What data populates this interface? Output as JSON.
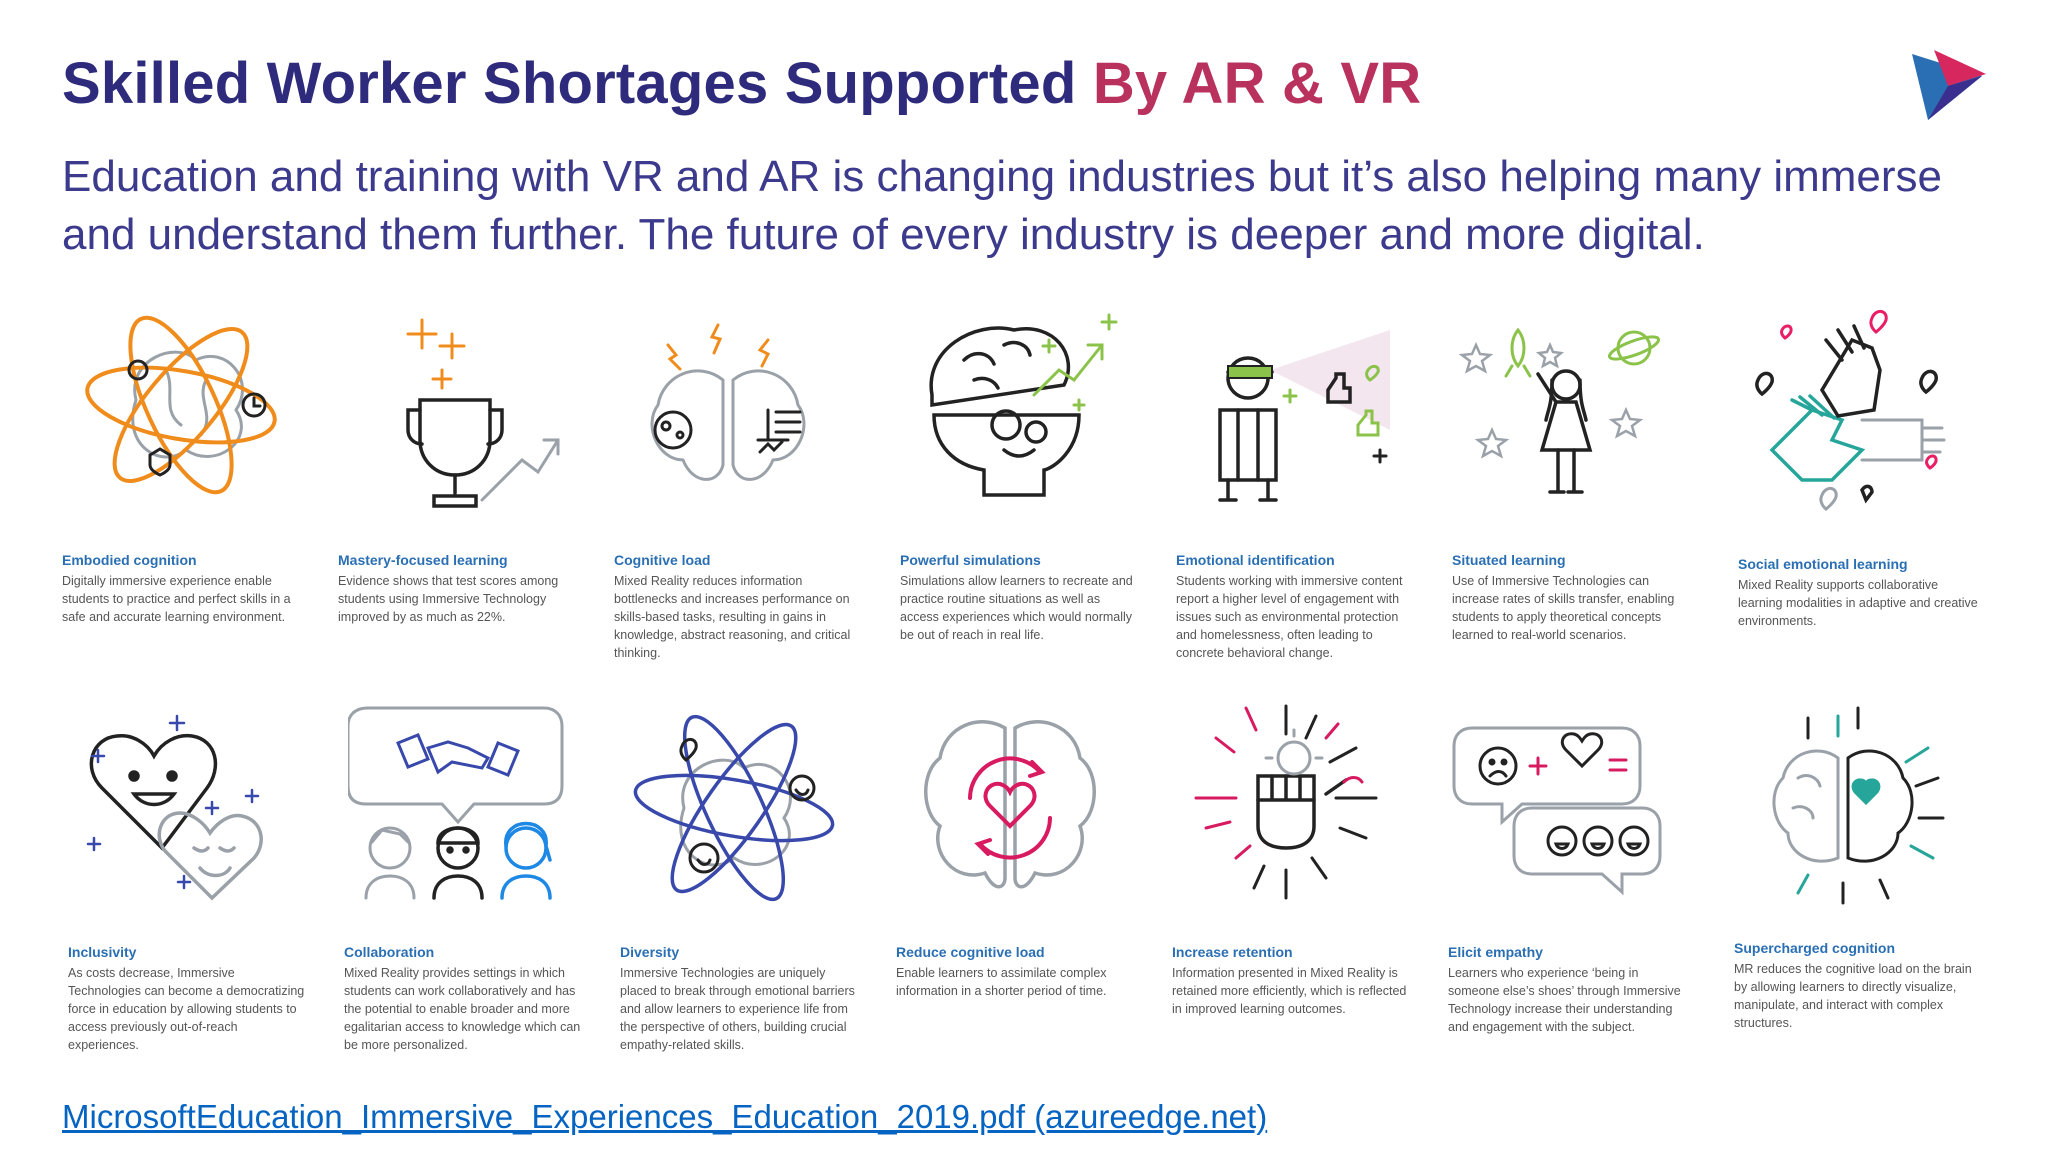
{
  "slide": {
    "title_main": "Skilled Worker Shortages Supported ",
    "title_accent": "By AR & VR",
    "subtitle": "Education and training with VR and AR is changing industries but it’s also helping many immerse and understand them further. The future of every industry is deeper and more digital.",
    "source_link": "MicrosoftEducation_Immersive_Experiences_Education_2019.pdf (azureedge.net)"
  },
  "cards": [
    {
      "title": "Embodied cognition",
      "text": "Digitally immersive experience enable students to practice and perfect skills in a safe and accurate learning environment.",
      "icon": "atom-brain-icon"
    },
    {
      "title": "Mastery-focused learning",
      "text": "Evidence shows that test scores among students using Immersive Technology improved by as much as 22%.",
      "icon": "trophy-icon"
    },
    {
      "title": "Cognitive load",
      "text": "Mixed Reality reduces information bottlenecks and increases performance on skills-based tasks, resulting in gains in knowledge, abstract reasoning, and critical thinking.",
      "icon": "brain-lightning-icon"
    },
    {
      "title": "Powerful simulations",
      "text": "Simulations allow learners to recreate and practice routine situations as well as access experiences which would normally be out of reach in real life.",
      "icon": "open-head-gears-icon"
    },
    {
      "title": "Emotional identification",
      "text": "Students working with immersive content report a higher level of engagement with issues such as environmental protection and homelessness, often leading to concrete behavioral change.",
      "icon": "headset-person-icon"
    },
    {
      "title": "Situated learning",
      "text": "Use of Immersive Technologies can increase rates of skills transfer, enabling students to apply theoretical concepts learned to real-world scenarios.",
      "icon": "person-space-icon"
    },
    {
      "title": "Social emotional learning",
      "text": "Mixed Reality supports collaborative learning modalities in adaptive and creative environments.",
      "icon": "stacked-hands-icon"
    },
    {
      "title": "Inclusivity",
      "text": "As costs decrease, Immersive Technologies can become a democratizing force in education by allowing students to access previously out-of-reach experiences.",
      "icon": "smiling-hearts-icon"
    },
    {
      "title": "Collaboration",
      "text": "Mixed Reality provides settings in which students can work collaboratively and has the potential to enable broader and more egalitarian access to knowledge which can be more personalized.",
      "icon": "handshake-people-icon"
    },
    {
      "title": "Diversity",
      "text": "Immersive Technologies are uniquely placed to break through emotional barriers and allow learners to experience life from the perspective of others, building crucial empathy-related skills.",
      "icon": "orbit-brain-icon"
    },
    {
      "title": "Reduce cognitive load",
      "text": "Enable learners to assimilate complex information in a shorter period of time.",
      "icon": "brain-heart-cycle-icon"
    },
    {
      "title": "Increase retention",
      "text": "Information presented in Mixed Reality is retained more efficiently, which is reflected in improved learning outcomes.",
      "icon": "fist-burst-icon"
    },
    {
      "title": "Elicit empathy",
      "text": "Learners who experience ‘being in someone else’s shoes’ through Immersive Technology increase their understanding and engagement with the subject.",
      "icon": "emoji-speech-bubbles-icon"
    },
    {
      "title": "Supercharged cognition",
      "text": "MR reduces the cognitive load on the brain by allowing learners to directly visualize, manipulate, and interact with complex structures.",
      "icon": "brain-rays-icon"
    }
  ],
  "colors": {
    "title_primary": "#2e2b7c",
    "title_accent": "#b8325d",
    "subtitle": "#3c3a8c",
    "caption_title": "#2a6fb3",
    "link": "#0563c1"
  }
}
